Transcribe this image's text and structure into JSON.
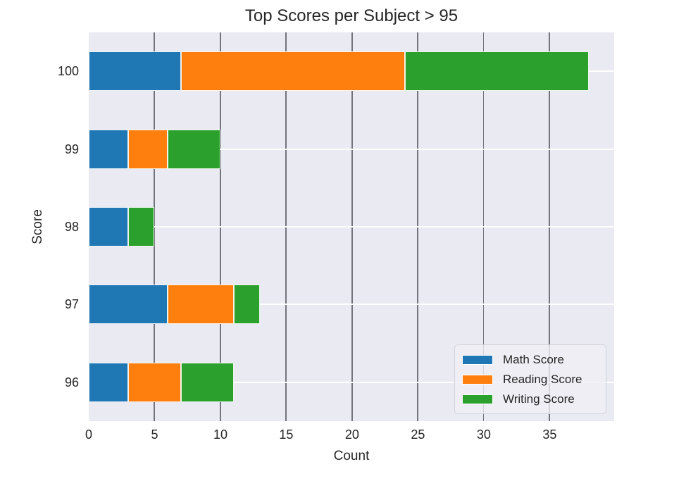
{
  "chart_data": {
    "type": "bar",
    "orientation": "horizontal",
    "stacked": true,
    "title": "Top Scores per Subject > 95",
    "xlabel": "Count",
    "ylabel": "Score",
    "categories": [
      "100",
      "99",
      "98",
      "97",
      "96"
    ],
    "series": [
      {
        "name": "Math Score",
        "color": "#1f77b4",
        "values": [
          7,
          3,
          3,
          6,
          3
        ]
      },
      {
        "name": "Reading Score",
        "color": "#ff7f0e",
        "values": [
          17,
          3,
          0,
          5,
          4
        ]
      },
      {
        "name": "Writing Score",
        "color": "#2ca02c",
        "values": [
          14,
          4,
          2,
          2,
          4
        ]
      }
    ],
    "xticks": [
      "0",
      "5",
      "10",
      "15",
      "20",
      "25",
      "30",
      "35"
    ],
    "xlim": [
      0,
      39.9
    ],
    "grid": true,
    "legend": {
      "position": "lower right"
    },
    "style": {
      "figure_background": "#ffffff",
      "plot_background": "#eaeaf2",
      "x_gridline_color": "#74747d",
      "y_gridline_color": "#ffffff",
      "text_color": "#262626"
    }
  }
}
